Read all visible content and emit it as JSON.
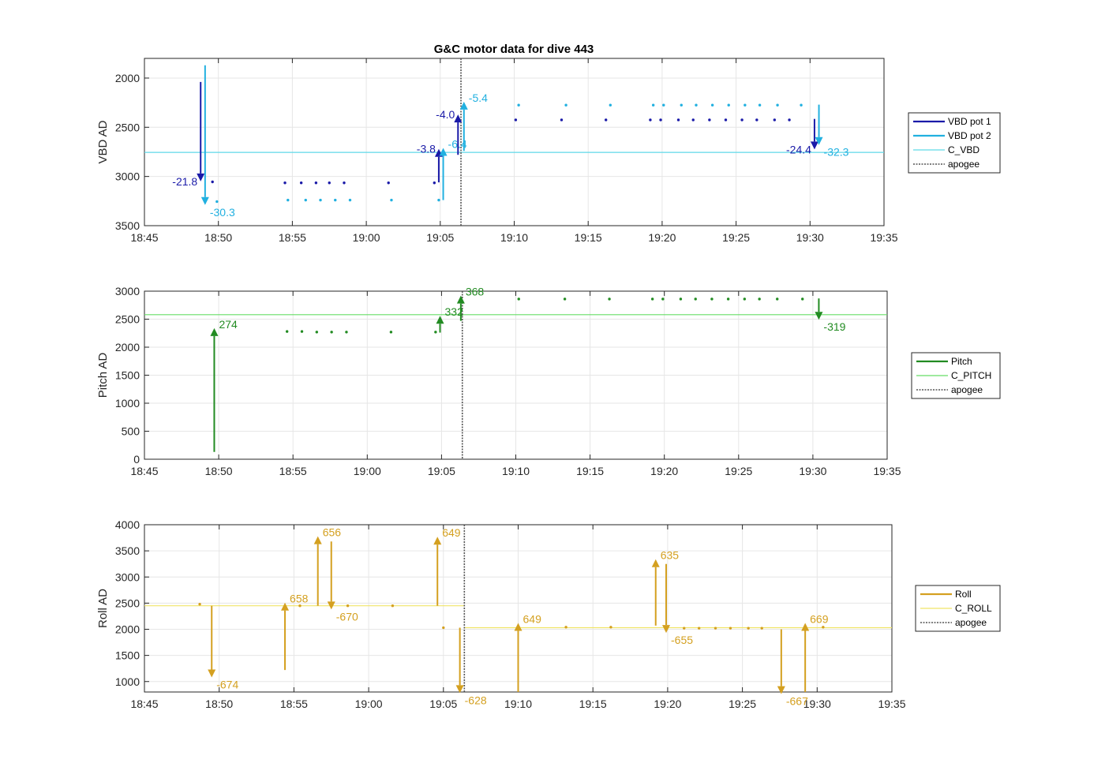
{
  "title": "G&C motor data for dive 443",
  "apogee_time": "19:06.4",
  "x_range": [
    "18:45",
    "19:35"
  ],
  "x_ticks": [
    "18:45",
    "18:50",
    "18:55",
    "19:00",
    "19:05",
    "19:10",
    "19:15",
    "19:20",
    "19:25",
    "19:30",
    "19:35"
  ],
  "colors": {
    "vbd_pot1": "#1a1aa8",
    "vbd_pot2": "#21b0e0",
    "c_vbd": "#5fd9e8",
    "pitch": "#228b22",
    "c_pitch": "#66dd66",
    "roll": "#d4a020",
    "c_roll": "#f0e468",
    "apogee": "#555555",
    "grid": "#e6e6e6",
    "axis": "#262626"
  },
  "chart_data": [
    {
      "type": "scatter",
      "ylabel": "VBD AD",
      "ylim": [
        3500,
        1800
      ],
      "y_reversed": true,
      "y_ticks": [
        "2000",
        "2500",
        "3000",
        "3500"
      ],
      "legend": [
        "VBD pot 1",
        "VBD pot 2",
        "C_VBD",
        "apogee"
      ],
      "legend_position": "right",
      "reference_line": {
        "name": "C_VBD",
        "value": 2755
      },
      "series": [
        {
          "name": "VBD pot 1",
          "color": "vbd_pot1",
          "points": [
            [
              "18:49.6",
              3055
            ],
            [
              "18:54.5",
              3065
            ],
            [
              "18:55.6",
              3065
            ],
            [
              "18:56.6",
              3065
            ],
            [
              "18:57.5",
              3065
            ],
            [
              "18:58.5",
              3065
            ],
            [
              "19:01.5",
              3065
            ],
            [
              "19:04.6",
              3065
            ],
            [
              "19:10.1",
              2425
            ],
            [
              "19:13.2",
              2425
            ],
            [
              "19:16.2",
              2425
            ],
            [
              "19:19.2",
              2425
            ],
            [
              "19:19.9",
              2425
            ],
            [
              "19:21.1",
              2425
            ],
            [
              "19:22.1",
              2425
            ],
            [
              "19:23.2",
              2425
            ],
            [
              "19:24.3",
              2425
            ],
            [
              "19:25.4",
              2425
            ],
            [
              "19:26.4",
              2425
            ],
            [
              "19:27.6",
              2425
            ],
            [
              "19:28.6",
              2425
            ]
          ]
        },
        {
          "name": "VBD pot 2",
          "color": "vbd_pot2",
          "points": [
            [
              "18:49.9",
              3255
            ],
            [
              "18:54.7",
              3240
            ],
            [
              "18:55.9",
              3240
            ],
            [
              "18:56.9",
              3240
            ],
            [
              "18:57.9",
              3240
            ],
            [
              "18:58.9",
              3240
            ],
            [
              "19:01.7",
              3240
            ],
            [
              "19:04.9",
              3240
            ],
            [
              "19:10.3",
              2275
            ],
            [
              "19:13.5",
              2275
            ],
            [
              "19:16.5",
              2275
            ],
            [
              "19:19.4",
              2275
            ],
            [
              "19:20.1",
              2275
            ],
            [
              "19:21.3",
              2275
            ],
            [
              "19:22.3",
              2275
            ],
            [
              "19:23.4",
              2275
            ],
            [
              "19:24.5",
              2275
            ],
            [
              "19:25.6",
              2275
            ],
            [
              "19:26.6",
              2275
            ],
            [
              "19:27.8",
              2275
            ],
            [
              "19:29.4",
              2275
            ]
          ]
        }
      ],
      "moves": [
        {
          "series": "VBD pot 1",
          "t": "18:48.8",
          "from": 2040,
          "to": 3050,
          "label": "-21.8",
          "side": "left"
        },
        {
          "series": "VBD pot 2",
          "t": "18:49.1",
          "from": 1870,
          "to": 3290,
          "label": "-30.3",
          "side": "right"
        },
        {
          "series": "VBD pot 1",
          "t": "19:04.9",
          "from": 3060,
          "to": 2720,
          "label": "-3.8",
          "side": "left"
        },
        {
          "series": "VBD pot 2",
          "t": "19:05.2",
          "from": 3240,
          "to": 2710,
          "label": "-6.4",
          "side": "right"
        },
        {
          "series": "VBD pot 1",
          "t": "19:06.2",
          "from": 2780,
          "to": 2370,
          "label": "-4.0",
          "side": "left"
        },
        {
          "series": "VBD pot 2",
          "t": "19:06.6",
          "from": 2740,
          "to": 2240,
          "label": "-5.4",
          "side": "right"
        },
        {
          "series": "VBD pot 1",
          "t": "19:30.3",
          "from": 2415,
          "to": 2725,
          "label": "-24.4",
          "side": "left"
        },
        {
          "series": "VBD pot 2",
          "t": "19:30.6",
          "from": 2270,
          "to": 2680,
          "label": "-32.3",
          "side": "right"
        }
      ]
    },
    {
      "type": "scatter",
      "ylabel": "Pitch AD",
      "ylim": [
        0,
        3000
      ],
      "y_ticks": [
        "0",
        "500",
        "1000",
        "1500",
        "2000",
        "2500",
        "3000"
      ],
      "legend": [
        "Pitch",
        "C_PITCH",
        "apogee"
      ],
      "legend_position": "right",
      "reference_line": {
        "name": "C_PITCH",
        "value": 2580
      },
      "series": [
        {
          "name": "Pitch",
          "color": "pitch",
          "points": [
            [
              "18:54.6",
              2280
            ],
            [
              "18:55.6",
              2280
            ],
            [
              "18:56.6",
              2270
            ],
            [
              "18:57.6",
              2270
            ],
            [
              "18:58.6",
              2270
            ],
            [
              "19:01.6",
              2270
            ],
            [
              "19:04.6",
              2270
            ],
            [
              "19:10.2",
              2860
            ],
            [
              "19:13.3",
              2860
            ],
            [
              "19:16.3",
              2860
            ],
            [
              "19:19.2",
              2860
            ],
            [
              "19:19.9",
              2860
            ],
            [
              "19:21.1",
              2860
            ],
            [
              "19:22.1",
              2860
            ],
            [
              "19:23.2",
              2860
            ],
            [
              "19:24.3",
              2860
            ],
            [
              "19:25.4",
              2860
            ],
            [
              "19:26.4",
              2860
            ],
            [
              "19:27.6",
              2860
            ],
            [
              "19:29.3",
              2860
            ]
          ]
        }
      ],
      "moves": [
        {
          "series": "Pitch",
          "t": "18:49.7",
          "from": 130,
          "to": 2340,
          "label": "274",
          "side": "right"
        },
        {
          "series": "Pitch",
          "t": "19:04.9",
          "from": 2260,
          "to": 2560,
          "label": "332",
          "side": "right"
        },
        {
          "series": "Pitch",
          "t": "19:06.3",
          "from": 2470,
          "to": 2920,
          "label": "368",
          "side": "right"
        },
        {
          "series": "Pitch",
          "t": "19:30.4",
          "from": 2870,
          "to": 2490,
          "label": "-319",
          "side": "right"
        }
      ]
    },
    {
      "type": "scatter",
      "ylabel": "Roll AD",
      "ylim": [
        800,
        4000
      ],
      "y_ticks": [
        "1000",
        "1500",
        "2000",
        "2500",
        "3000",
        "3500",
        "4000"
      ],
      "legend": [
        "Roll",
        "C_ROLL",
        "apogee"
      ],
      "legend_position": "right",
      "reference_lines": [
        {
          "name": "C_ROLL",
          "from": "18:45",
          "to": "19:06.4",
          "value": 2450
        },
        {
          "name": "C_ROLL",
          "from": "19:06.4",
          "to": "19:35",
          "value": 2030
        }
      ],
      "series": [
        {
          "name": "Roll",
          "color": "roll",
          "points": [
            [
              "18:48.7",
              2480
            ],
            [
              "18:55.4",
              2450
            ],
            [
              "18:58.6",
              2450
            ],
            [
              "19:01.6",
              2450
            ],
            [
              "19:05.0",
              2030
            ],
            [
              "19:13.2",
              2040
            ],
            [
              "19:16.2",
              2040
            ],
            [
              "19:21.1",
              2020
            ],
            [
              "19:22.1",
              2020
            ],
            [
              "19:23.2",
              2020
            ],
            [
              "19:24.2",
              2020
            ],
            [
              "19:25.4",
              2020
            ],
            [
              "19:26.3",
              2020
            ],
            [
              "19:30.4",
              2040
            ]
          ]
        }
      ],
      "moves": [
        {
          "series": "Roll",
          "t": "18:49.5",
          "from": 2450,
          "to": 1080,
          "label": "-674",
          "side": "right"
        },
        {
          "series": "Roll",
          "t": "18:54.4",
          "from": 1220,
          "to": 2510,
          "label": "658",
          "side": "right"
        },
        {
          "series": "Roll",
          "t": "18:56.6",
          "from": 2450,
          "to": 3780,
          "label": "656",
          "side": "right"
        },
        {
          "series": "Roll",
          "t": "18:57.5",
          "from": 3680,
          "to": 2380,
          "label": "-670",
          "side": "right"
        },
        {
          "series": "Roll",
          "t": "19:04.6",
          "from": 2450,
          "to": 3770,
          "label": "649",
          "side": "right"
        },
        {
          "series": "Roll",
          "t": "19:06.1",
          "from": 2030,
          "to": 780,
          "label": "-628",
          "side": "right"
        },
        {
          "series": "Roll",
          "t": "19:10.0",
          "from": 800,
          "to": 2120,
          "label": "649",
          "side": "right"
        },
        {
          "series": "Roll",
          "t": "19:19.2",
          "from": 2070,
          "to": 3340,
          "label": "635",
          "side": "right"
        },
        {
          "series": "Roll",
          "t": "19:19.9",
          "from": 3250,
          "to": 1930,
          "label": "-655",
          "side": "right"
        },
        {
          "series": "Roll",
          "t": "19:27.6",
          "from": 2000,
          "to": 760,
          "label": "-667",
          "side": "right"
        },
        {
          "series": "Roll",
          "t": "19:29.2",
          "from": 800,
          "to": 2120,
          "label": "669",
          "side": "right"
        }
      ]
    }
  ]
}
